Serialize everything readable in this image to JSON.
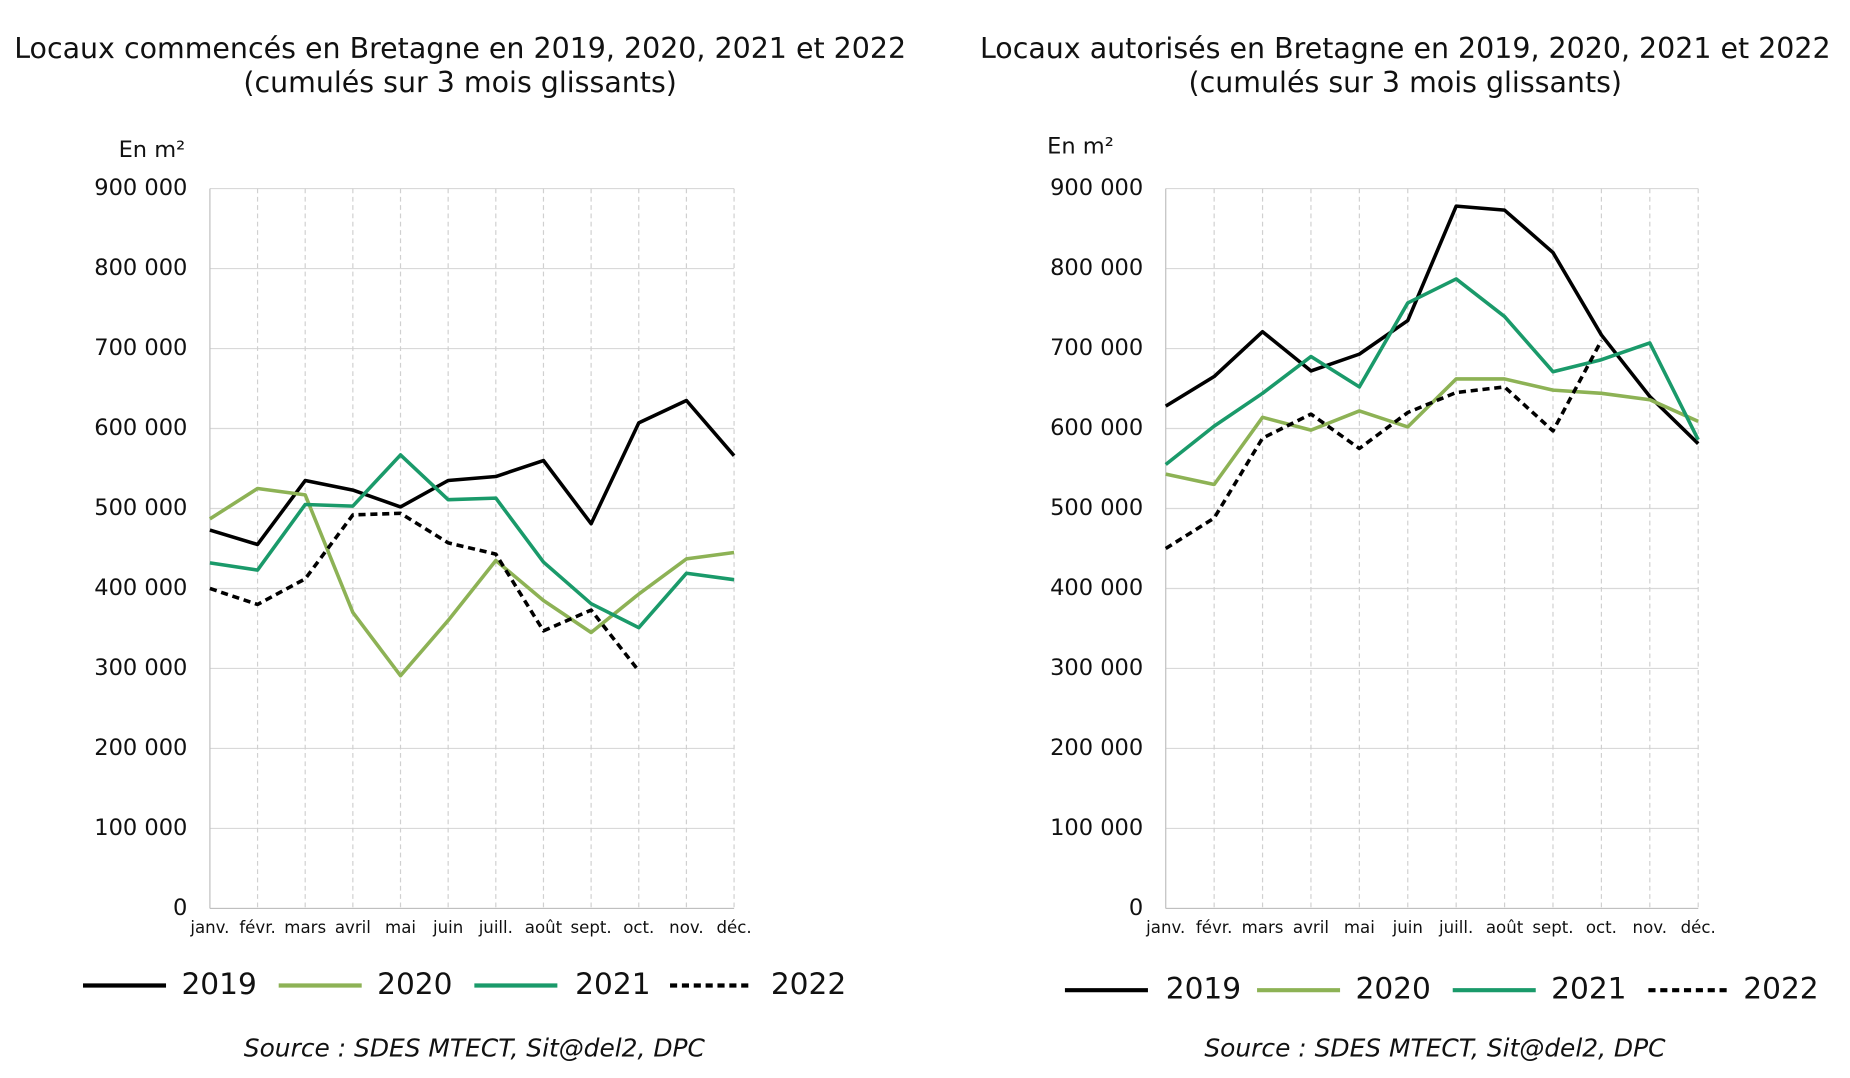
{
  "chart_data": [
    {
      "type": "line",
      "title": "Locaux commencés en Bretagne en 2019, 2020, 2021 et 2022",
      "subtitle": "(cumulés sur 3 mois glissants)",
      "y_label": "En m²",
      "source": "Source : SDES MTECT, Sit@del2, DPC",
      "categories": [
        "janv.",
        "févr.",
        "mars",
        "avril",
        "mai",
        "juin",
        "juill.",
        "août",
        "sept.",
        "oct.",
        "nov.",
        "déc."
      ],
      "ylim": [
        0,
        900000
      ],
      "yticks": [
        0,
        {
          "value": 100000,
          "label": "100 000"
        },
        {
          "value": 200000,
          "label": "200 000"
        },
        {
          "value": 300000,
          "label": "300 000"
        },
        {
          "value": 400000,
          "label": "400 000"
        },
        {
          "value": 500000,
          "label": "500 000"
        },
        {
          "value": 600000,
          "label": "600 000"
        },
        {
          "value": 700000,
          "label": "700 000"
        },
        {
          "value": 800000,
          "label": "800 000"
        },
        {
          "value": 900000,
          "label": "900 000"
        }
      ],
      "grid": true,
      "series": [
        {
          "name": "2019",
          "color": "#000000",
          "values": [
            473000,
            455000,
            535000,
            523000,
            502000,
            535000,
            540000,
            560000,
            481000,
            607000,
            635000,
            566000
          ]
        },
        {
          "name": "2020",
          "color": "#8db255",
          "values": [
            487000,
            525000,
            517000,
            370000,
            291000,
            360000,
            435000,
            385000,
            345000,
            393000,
            437000,
            445000
          ]
        },
        {
          "name": "2021",
          "color": "#1a9a6a",
          "values": [
            432000,
            423000,
            505000,
            503000,
            567000,
            511000,
            513000,
            433000,
            381000,
            351000,
            419000,
            411000
          ]
        },
        {
          "name": "2022",
          "color": "#000000",
          "dashed": true,
          "values": [
            400000,
            380000,
            412000,
            492000,
            494000,
            457000,
            443000,
            347000,
            373000,
            297000,
            null,
            null
          ]
        }
      ]
    },
    {
      "type": "line",
      "title": "Locaux autorisés en Bretagne en 2019, 2020, 2021 et 2022",
      "subtitle": "(cumulés sur 3 mois glissants)",
      "y_label": "En m²",
      "source": "Source : SDES MTECT, Sit@del2, DPC",
      "categories": [
        "janv.",
        "févr.",
        "mars",
        "avril",
        "mai",
        "juin",
        "juill.",
        "août",
        "sept.",
        "oct.",
        "nov.",
        "déc."
      ],
      "ylim": [
        0,
        900000
      ],
      "yticks": [
        0,
        {
          "value": 100000,
          "label": "100 000"
        },
        {
          "value": 200000,
          "label": "200 000"
        },
        {
          "value": 300000,
          "label": "300 000"
        },
        {
          "value": 400000,
          "label": "400 000"
        },
        {
          "value": 500000,
          "label": "500 000"
        },
        {
          "value": 600000,
          "label": "600 000"
        },
        {
          "value": 700000,
          "label": "700 000"
        },
        {
          "value": 800000,
          "label": "800 000"
        },
        {
          "value": 900000,
          "label": "900 000"
        }
      ],
      "grid": true,
      "series": [
        {
          "name": "2019",
          "color": "#000000",
          "values": [
            628000,
            665000,
            721000,
            672000,
            693000,
            735000,
            878000,
            873000,
            820000,
            717000,
            640000,
            581000
          ]
        },
        {
          "name": "2020",
          "color": "#8db255",
          "values": [
            543000,
            530000,
            614000,
            598000,
            622000,
            602000,
            662000,
            662000,
            648000,
            644000,
            636000,
            609000
          ]
        },
        {
          "name": "2021",
          "color": "#1a9a6a",
          "values": [
            555000,
            603000,
            644000,
            690000,
            652000,
            757000,
            787000,
            740000,
            671000,
            686000,
            707000,
            586000
          ]
        },
        {
          "name": "2022",
          "color": "#000000",
          "dashed": true,
          "values": [
            450000,
            488000,
            588000,
            618000,
            575000,
            620000,
            645000,
            652000,
            597000,
            710000,
            null,
            null
          ]
        }
      ]
    }
  ]
}
